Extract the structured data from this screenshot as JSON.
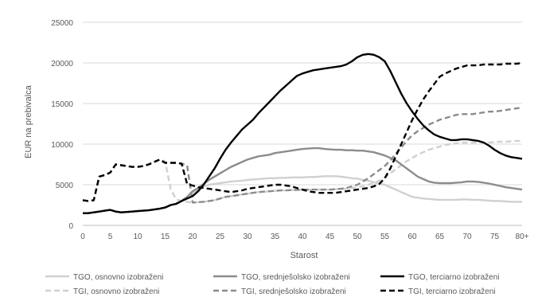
{
  "chart_data": {
    "type": "line",
    "xlabel": "Starost",
    "ylabel": "EUR na prebivalca",
    "ylim": [
      0,
      25000
    ],
    "yticks": [
      0,
      5000,
      10000,
      15000,
      20000,
      25000
    ],
    "xticks": [
      "0",
      "5",
      "10",
      "15",
      "20",
      "25",
      "30",
      "35",
      "40",
      "45",
      "50",
      "55",
      "60",
      "65",
      "70",
      "75",
      "80+"
    ],
    "grid": "horizontal",
    "legend_position": "bottom",
    "x": [
      0,
      1,
      2,
      3,
      4,
      5,
      6,
      7,
      8,
      9,
      10,
      11,
      12,
      13,
      14,
      15,
      16,
      17,
      18,
      19,
      20,
      21,
      22,
      23,
      24,
      25,
      26,
      27,
      28,
      29,
      30,
      31,
      32,
      33,
      34,
      35,
      36,
      37,
      38,
      39,
      40,
      41,
      42,
      43,
      44,
      45,
      46,
      47,
      48,
      49,
      50,
      51,
      52,
      53,
      54,
      55,
      56,
      57,
      58,
      59,
      60,
      61,
      62,
      63,
      64,
      65,
      66,
      67,
      68,
      69,
      70,
      71,
      72,
      73,
      74,
      75,
      76,
      77,
      78,
      79,
      80
    ],
    "series": [
      {
        "name": "TGO, osnovno izobraženi",
        "color": "#d0d0d0",
        "dash": "solid",
        "values": [
          1500,
          1500,
          1600,
          1700,
          1800,
          1900,
          1700,
          1600,
          1650,
          1700,
          1750,
          1800,
          1850,
          1950,
          2050,
          2200,
          2500,
          2650,
          3000,
          3500,
          4000,
          4500,
          4800,
          5000,
          5100,
          5200,
          5300,
          5400,
          5450,
          5500,
          5600,
          5650,
          5700,
          5750,
          5800,
          5800,
          5850,
          5850,
          5900,
          5900,
          5900,
          5950,
          5950,
          6000,
          6050,
          6050,
          6050,
          6000,
          5900,
          5800,
          5750,
          5600,
          5500,
          5300,
          5100,
          5000,
          4700,
          4400,
          4100,
          3800,
          3500,
          3400,
          3300,
          3250,
          3200,
          3150,
          3150,
          3150,
          3150,
          3200,
          3200,
          3150,
          3150,
          3100,
          3050,
          3000,
          3000,
          2950,
          2900,
          2900,
          2900
        ]
      },
      {
        "name": "TGO, srednješolsko izobraženi",
        "color": "#8c8c8c",
        "dash": "solid",
        "values": [
          1500,
          1500,
          1600,
          1700,
          1800,
          1900,
          1700,
          1600,
          1650,
          1700,
          1750,
          1800,
          1850,
          1950,
          2050,
          2200,
          2500,
          2650,
          3000,
          3500,
          4200,
          4600,
          5100,
          5600,
          6000,
          6400,
          6800,
          7200,
          7500,
          7800,
          8100,
          8300,
          8500,
          8600,
          8700,
          8900,
          9000,
          9100,
          9200,
          9300,
          9400,
          9450,
          9500,
          9500,
          9400,
          9350,
          9300,
          9300,
          9250,
          9250,
          9200,
          9200,
          9100,
          9000,
          8800,
          8600,
          8300,
          8000,
          7500,
          7000,
          6500,
          6000,
          5700,
          5400,
          5250,
          5200,
          5200,
          5200,
          5250,
          5300,
          5400,
          5400,
          5350,
          5250,
          5150,
          5000,
          4850,
          4700,
          4600,
          4500,
          4400
        ]
      },
      {
        "name": "TGO, terciarno izobraženi",
        "color": "#000000",
        "dash": "solid",
        "values": [
          1500,
          1500,
          1600,
          1700,
          1800,
          1900,
          1700,
          1600,
          1650,
          1700,
          1750,
          1800,
          1850,
          1950,
          2050,
          2200,
          2500,
          2650,
          3000,
          3300,
          3600,
          4200,
          5000,
          6000,
          7000,
          8200,
          9300,
          10200,
          11000,
          11800,
          12400,
          13000,
          13800,
          14500,
          15200,
          15900,
          16600,
          17200,
          17800,
          18400,
          18700,
          18900,
          19100,
          19200,
          19300,
          19400,
          19500,
          19600,
          19800,
          20200,
          20700,
          21000,
          21100,
          21000,
          20700,
          20200,
          19000,
          17600,
          16200,
          15000,
          14000,
          13100,
          12300,
          11700,
          11200,
          10900,
          10700,
          10500,
          10500,
          10600,
          10600,
          10500,
          10400,
          10200,
          9800,
          9300,
          8900,
          8600,
          8400,
          8300,
          8200
        ]
      },
      {
        "name": "TGI, osnovno izobraženi",
        "color": "#d0d0d0",
        "dash": "dashed",
        "values": [
          3100,
          3000,
          3100,
          6000,
          6200,
          6500,
          7500,
          7400,
          7300,
          7200,
          7200,
          7300,
          7500,
          7800,
          8100,
          7900,
          4500,
          3200,
          3000,
          2900,
          2800,
          2850,
          2900,
          3000,
          3100,
          3300,
          3500,
          3600,
          3700,
          3800,
          3900,
          4000,
          4100,
          4150,
          4200,
          4250,
          4300,
          4300,
          4350,
          4350,
          4400,
          4400,
          4400,
          4400,
          4400,
          4400,
          4450,
          4500,
          4500,
          4600,
          4700,
          4800,
          5000,
          5200,
          5500,
          5900,
          6400,
          6900,
          7400,
          7900,
          8300,
          8700,
          9000,
          9300,
          9500,
          9700,
          9900,
          10000,
          10100,
          10200,
          10200,
          10200,
          10200,
          10200,
          10200,
          10250,
          10300,
          10300,
          10350,
          10400,
          10400
        ]
      },
      {
        "name": "TGI, srednješolsko izobraženi",
        "color": "#8c8c8c",
        "dash": "dashed",
        "values": [
          3100,
          3000,
          3100,
          6000,
          6200,
          6500,
          7500,
          7400,
          7300,
          7200,
          7200,
          7300,
          7500,
          7800,
          8100,
          7700,
          7700,
          7700,
          7600,
          7400,
          2800,
          2850,
          2900,
          3000,
          3100,
          3300,
          3500,
          3600,
          3700,
          3800,
          3900,
          4000,
          4100,
          4150,
          4200,
          4250,
          4300,
          4300,
          4350,
          4350,
          4400,
          4400,
          4400,
          4400,
          4400,
          4400,
          4450,
          4500,
          4600,
          4800,
          5000,
          5400,
          5800,
          6300,
          6800,
          7300,
          8000,
          8800,
          9600,
          10400,
          11100,
          11600,
          12000,
          12400,
          12700,
          13000,
          13200,
          13400,
          13600,
          13700,
          13700,
          13700,
          13800,
          13900,
          14000,
          14000,
          14100,
          14200,
          14300,
          14400,
          14500
        ]
      },
      {
        "name": "TGI, terciarno izobraženi",
        "color": "#000000",
        "dash": "dashed",
        "values": [
          3100,
          3000,
          3100,
          6000,
          6200,
          6500,
          7500,
          7400,
          7300,
          7200,
          7200,
          7300,
          7500,
          7800,
          8100,
          7700,
          7700,
          7700,
          7600,
          5100,
          4900,
          4700,
          4600,
          4500,
          4400,
          4300,
          4200,
          4100,
          4200,
          4300,
          4500,
          4600,
          4700,
          4800,
          4900,
          5000,
          5000,
          4900,
          4800,
          4600,
          4400,
          4200,
          4100,
          4000,
          4000,
          4000,
          4000,
          4100,
          4200,
          4300,
          4400,
          4500,
          4600,
          4800,
          5100,
          5800,
          7000,
          8500,
          10000,
          11500,
          13000,
          14300,
          15500,
          16500,
          17400,
          18300,
          18700,
          19000,
          19300,
          19500,
          19700,
          19700,
          19700,
          19800,
          19800,
          19800,
          19800,
          19900,
          19900,
          19900,
          20000
        ]
      }
    ]
  }
}
